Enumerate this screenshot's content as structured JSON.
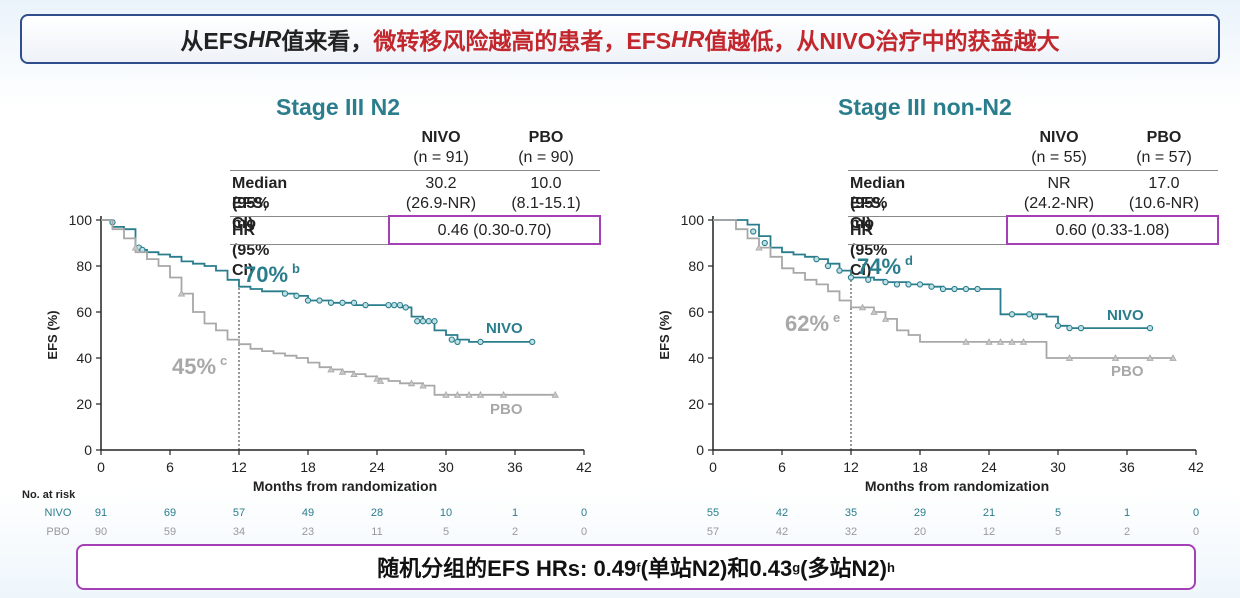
{
  "header": {
    "part1": "从EFS ",
    "part2": "HR",
    "part3": "值来看，",
    "part4": "微转移风险越高的患者，EFS ",
    "part5": "HR",
    "part6": "值越低，从NIVO治疗中的获益越大"
  },
  "footer": {
    "main": "随机分组的EFS HRs: 0.49",
    "sup1": "f",
    "mid": "(单站N2)和0.43",
    "sup2": "g",
    "end": "(多站N2)",
    "sup3": "h"
  },
  "colors": {
    "nivo": "#2a7d8c",
    "pbo": "#a8a8a8",
    "hr_box": "#a53fb6",
    "title_red": "#c1272d"
  },
  "no_at_risk_label": "No. at risk",
  "chart_data": [
    {
      "type": "line",
      "title": "Stage III N2",
      "xlabel": "Months from randomization",
      "ylabel": "EFS (%)",
      "xlim": [
        0,
        42
      ],
      "ylim": [
        0,
        100
      ],
      "xticks": [
        "0",
        "6",
        "12",
        "18",
        "24",
        "30",
        "36",
        "42"
      ],
      "yticks": [
        "0",
        "20",
        "40",
        "60",
        "80",
        "100"
      ],
      "table": {
        "col_nivo": "NIVO",
        "col_nivo_n": "(n = 91)",
        "col_pbo": "PBO",
        "col_pbo_n": "(n = 90)",
        "row1_label": "Median EFS, mo",
        "row1_label2": "(95% CI)",
        "nivo_median": "30.2",
        "nivo_ci": "(26.9-NR)",
        "pbo_median": "10.0",
        "pbo_ci": "(8.1-15.1)",
        "row2_label": "HR (95% CI)",
        "hr": "0.46 (0.30-0.70)"
      },
      "annot_nivo": "70%",
      "annot_nivo_sup": "b",
      "annot_pbo": "45%",
      "annot_pbo_sup": "c",
      "series": [
        {
          "name": "NIVO",
          "color": "#2a7d8c",
          "x": [
            0,
            1,
            2,
            3,
            3.5,
            4,
            5,
            6,
            7,
            8,
            9,
            10,
            11,
            12,
            13,
            14,
            15,
            16,
            17,
            18,
            20,
            22,
            24,
            26,
            27,
            28,
            29,
            30,
            31,
            32,
            33,
            34,
            35,
            36,
            37.5
          ],
          "y": [
            100,
            97,
            96,
            88,
            87,
            86,
            85,
            84,
            82,
            81,
            80,
            78,
            74,
            71,
            70,
            69,
            69,
            68,
            67,
            65,
            64,
            63,
            63,
            62,
            58,
            56,
            52,
            50,
            48,
            47,
            47,
            47,
            47,
            47,
            47
          ],
          "censor": [
            [
              1,
              99
            ],
            [
              3.3,
              88
            ],
            [
              3.6,
              87
            ],
            [
              16,
              68
            ],
            [
              17,
              67
            ],
            [
              18,
              65
            ],
            [
              19,
              65
            ],
            [
              20,
              64
            ],
            [
              21,
              64
            ],
            [
              22,
              64
            ],
            [
              23,
              63
            ],
            [
              25,
              63
            ],
            [
              25.5,
              63
            ],
            [
              26,
              63
            ],
            [
              26.5,
              62
            ],
            [
              27.5,
              56
            ],
            [
              28,
              56
            ],
            [
              28.5,
              56
            ],
            [
              29,
              56
            ],
            [
              30.5,
              48
            ],
            [
              31,
              47
            ],
            [
              33,
              47
            ],
            [
              37.5,
              47
            ]
          ]
        },
        {
          "name": "PBO",
          "color": "#a8a8a8",
          "x": [
            0,
            1,
            2,
            3,
            4,
            5,
            6,
            7,
            8,
            9,
            10,
            11,
            12,
            13,
            14,
            15,
            16,
            17,
            18,
            19,
            20,
            21,
            22,
            23,
            24,
            25,
            26,
            28,
            29,
            30,
            31,
            33,
            35,
            37,
            38,
            39.5
          ],
          "y": [
            100,
            96,
            92,
            86,
            83,
            80,
            75,
            68,
            60,
            55,
            52,
            48,
            46,
            44,
            43,
            42,
            41,
            40,
            38,
            36,
            35,
            34,
            33,
            32,
            31,
            30,
            29,
            28,
            24,
            24,
            24,
            24,
            24,
            24,
            24,
            24
          ],
          "censor": [
            [
              3,
              88
            ],
            [
              7,
              68
            ],
            [
              20,
              35
            ],
            [
              21,
              34
            ],
            [
              22,
              33
            ],
            [
              24,
              31
            ],
            [
              24.3,
              30
            ],
            [
              27,
              29
            ],
            [
              28,
              28
            ],
            [
              30,
              24
            ],
            [
              31,
              24
            ],
            [
              32,
              24
            ],
            [
              33,
              24
            ],
            [
              35,
              24
            ],
            [
              39.5,
              24
            ]
          ]
        }
      ],
      "at_risk": {
        "nivo": [
          "91",
          "69",
          "57",
          "49",
          "28",
          "10",
          "1",
          "0"
        ],
        "pbo": [
          "90",
          "59",
          "34",
          "23",
          "11",
          "5",
          "2",
          "0"
        ]
      },
      "landmark_x": 12
    },
    {
      "type": "line",
      "title": "Stage III non-N2",
      "xlabel": "Months from randomization",
      "ylabel": "EFS (%)",
      "xlim": [
        0,
        42
      ],
      "ylim": [
        0,
        100
      ],
      "xticks": [
        "0",
        "6",
        "12",
        "18",
        "24",
        "30",
        "36",
        "42"
      ],
      "yticks": [
        "0",
        "20",
        "40",
        "60",
        "80",
        "100"
      ],
      "table": {
        "col_nivo": "NIVO",
        "col_nivo_n": "(n = 55)",
        "col_pbo": "PBO",
        "col_pbo_n": "(n = 57)",
        "row1_label": "Median EFS, mo",
        "row1_label2": "(95% CI)",
        "nivo_median": "NR",
        "nivo_ci": "(24.2-NR)",
        "pbo_median": "17.0",
        "pbo_ci": "(10.6-NR)",
        "row2_label": "HR (95% CI)",
        "hr": "0.60 (0.33-1.08)"
      },
      "annot_nivo": "74%",
      "annot_nivo_sup": "d",
      "annot_pbo": "62%",
      "annot_pbo_sup": "e",
      "series": [
        {
          "name": "NIVO",
          "color": "#2a7d8c",
          "x": [
            0,
            1,
            2,
            3,
            4,
            5,
            6,
            7,
            8,
            9,
            10,
            11,
            12,
            13,
            14,
            15,
            16,
            17,
            18,
            19,
            20,
            22,
            24,
            25,
            26,
            27,
            28,
            29,
            30,
            31,
            32,
            34,
            36,
            38
          ],
          "y": [
            100,
            100,
            100,
            98,
            93,
            88,
            86,
            85,
            84,
            83,
            81,
            78,
            75,
            75,
            74,
            73,
            73,
            72,
            72,
            71,
            70,
            70,
            70,
            59,
            59,
            59,
            59,
            58,
            54,
            53,
            53,
            53,
            53,
            53
          ],
          "censor": [
            [
              3.5,
              95
            ],
            [
              4.5,
              90
            ],
            [
              9,
              83
            ],
            [
              10,
              80
            ],
            [
              11,
              78
            ],
            [
              12,
              75
            ],
            [
              13.5,
              74
            ],
            [
              15,
              73
            ],
            [
              16,
              72
            ],
            [
              17,
              72
            ],
            [
              18,
              72
            ],
            [
              19,
              71
            ],
            [
              20,
              70
            ],
            [
              21,
              70
            ],
            [
              22,
              70
            ],
            [
              23,
              70
            ],
            [
              26,
              59
            ],
            [
              27.5,
              59
            ],
            [
              28,
              58
            ],
            [
              30,
              54
            ],
            [
              31,
              53
            ],
            [
              32,
              53
            ],
            [
              38,
              53
            ]
          ]
        },
        {
          "name": "PBO",
          "color": "#a8a8a8",
          "x": [
            0,
            1,
            2,
            3,
            4,
            5,
            6,
            7,
            8,
            9,
            10,
            11,
            12,
            13,
            14,
            15,
            16,
            17,
            18,
            20,
            22,
            24,
            26,
            28,
            29,
            30,
            32,
            34,
            36,
            38,
            40
          ],
          "y": [
            100,
            100,
            96,
            92,
            88,
            84,
            79,
            77,
            74,
            72,
            69,
            65,
            62,
            62,
            60,
            57,
            52,
            50,
            47,
            47,
            47,
            47,
            47,
            47,
            40,
            40,
            40,
            40,
            40,
            40,
            40
          ],
          "censor": [
            [
              4,
              88
            ],
            [
              13,
              62
            ],
            [
              14,
              60
            ],
            [
              15,
              57
            ],
            [
              22,
              47
            ],
            [
              24,
              47
            ],
            [
              25,
              47
            ],
            [
              26,
              47
            ],
            [
              27,
              47
            ],
            [
              31,
              40
            ],
            [
              35,
              40
            ],
            [
              38,
              40
            ],
            [
              40,
              40
            ]
          ]
        }
      ],
      "at_risk": {
        "nivo": [
          "55",
          "42",
          "35",
          "29",
          "21",
          "5",
          "1",
          "0"
        ],
        "pbo": [
          "57",
          "42",
          "32",
          "20",
          "12",
          "5",
          "2",
          "0"
        ]
      },
      "landmark_x": 12
    }
  ]
}
